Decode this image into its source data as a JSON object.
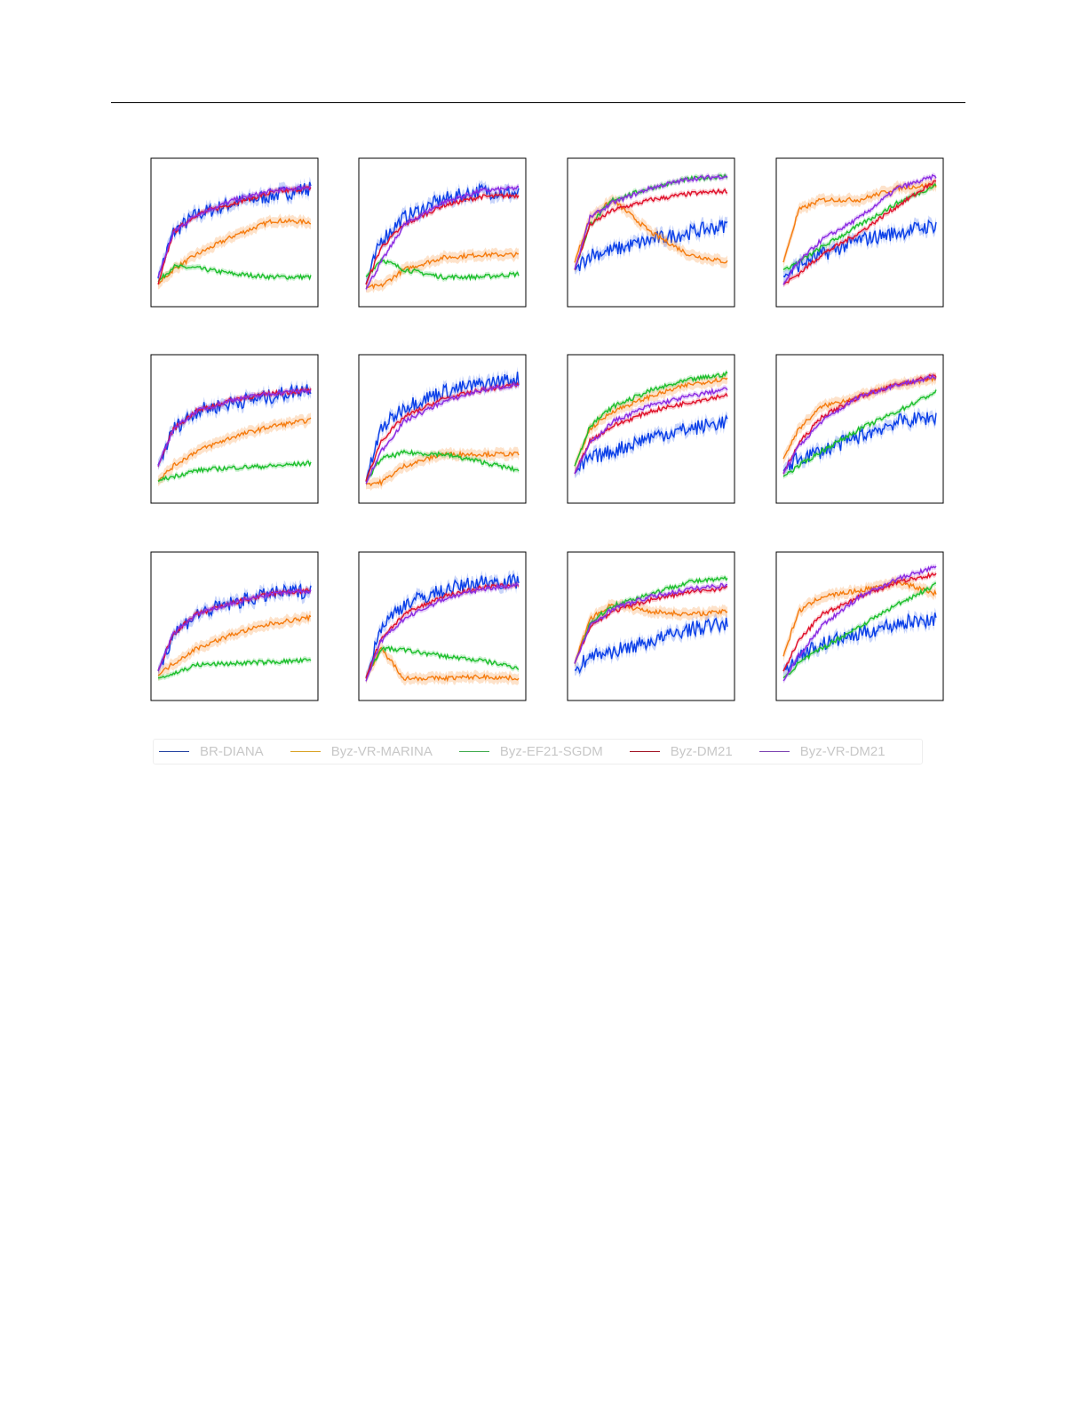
{
  "chart_data": [
    {
      "type": "line",
      "panel": "r1c1",
      "x": [
        0,
        0.1,
        0.25,
        0.5,
        0.75,
        1
      ],
      "series": [
        {
          "key": "BR-DIANA",
          "values": [
            0.2,
            0.5,
            0.62,
            0.7,
            0.75,
            0.8
          ]
        },
        {
          "key": "Byz-VR-MARINA",
          "values": [
            0.15,
            0.25,
            0.35,
            0.48,
            0.58,
            0.57
          ]
        },
        {
          "key": "Byz-EF21-SGDM",
          "values": [
            0.17,
            0.27,
            0.26,
            0.22,
            0.2,
            0.2
          ]
        },
        {
          "key": "Byz-DM21",
          "values": [
            0.15,
            0.5,
            0.62,
            0.7,
            0.77,
            0.8
          ]
        },
        {
          "key": "Byz-VR-DM21",
          "values": [
            0.2,
            0.5,
            0.62,
            0.72,
            0.78,
            0.81
          ]
        }
      ]
    },
    {
      "type": "line",
      "panel": "r1c2",
      "x": [
        0,
        0.1,
        0.25,
        0.5,
        0.75,
        1
      ],
      "series": [
        {
          "key": "BR-DIANA",
          "values": [
            0.15,
            0.45,
            0.6,
            0.72,
            0.78,
            0.76
          ]
        },
        {
          "key": "Byz-VR-MARINA",
          "values": [
            0.13,
            0.14,
            0.25,
            0.33,
            0.35,
            0.35
          ]
        },
        {
          "key": "Byz-EF21-SGDM",
          "values": [
            0.2,
            0.32,
            0.25,
            0.2,
            0.2,
            0.22
          ]
        },
        {
          "key": "Byz-DM21",
          "values": [
            0.15,
            0.4,
            0.55,
            0.68,
            0.74,
            0.75
          ]
        },
        {
          "key": "Byz-VR-DM21",
          "values": [
            0.12,
            0.3,
            0.55,
            0.7,
            0.78,
            0.8
          ]
        }
      ]
    },
    {
      "type": "line",
      "panel": "r1c3",
      "x": [
        0,
        0.1,
        0.25,
        0.5,
        0.75,
        1
      ],
      "series": [
        {
          "key": "BR-DIANA",
          "values": [
            0.25,
            0.35,
            0.38,
            0.45,
            0.5,
            0.55
          ]
        },
        {
          "key": "Byz-VR-MARINA",
          "values": [
            0.3,
            0.6,
            0.72,
            0.5,
            0.35,
            0.3
          ]
        },
        {
          "key": "Byz-EF21-SGDM",
          "values": [
            0.25,
            0.55,
            0.72,
            0.8,
            0.86,
            0.88
          ]
        },
        {
          "key": "Byz-DM21",
          "values": [
            0.25,
            0.55,
            0.65,
            0.72,
            0.76,
            0.78
          ]
        },
        {
          "key": "Byz-VR-DM21",
          "values": [
            0.25,
            0.6,
            0.7,
            0.8,
            0.86,
            0.88
          ]
        }
      ]
    },
    {
      "type": "line",
      "panel": "r1c4",
      "x": [
        0,
        0.1,
        0.25,
        0.5,
        0.75,
        1
      ],
      "series": [
        {
          "key": "BR-DIANA",
          "values": [
            0.2,
            0.28,
            0.35,
            0.45,
            0.5,
            0.55
          ]
        },
        {
          "key": "Byz-VR-MARINA",
          "values": [
            0.3,
            0.65,
            0.72,
            0.72,
            0.8,
            0.82
          ]
        },
        {
          "key": "Byz-EF21-SGDM",
          "values": [
            0.25,
            0.3,
            0.4,
            0.55,
            0.7,
            0.82
          ]
        },
        {
          "key": "Byz-DM21",
          "values": [
            0.15,
            0.22,
            0.35,
            0.5,
            0.68,
            0.85
          ]
        },
        {
          "key": "Byz-VR-DM21",
          "values": [
            0.15,
            0.3,
            0.45,
            0.6,
            0.8,
            0.88
          ]
        }
      ]
    },
    {
      "type": "line",
      "panel": "r2c1",
      "x": [
        0,
        0.1,
        0.25,
        0.5,
        0.75,
        1
      ],
      "series": [
        {
          "key": "BR-DIANA",
          "values": [
            0.25,
            0.5,
            0.62,
            0.68,
            0.72,
            0.78
          ]
        },
        {
          "key": "Byz-VR-MARINA",
          "values": [
            0.15,
            0.25,
            0.35,
            0.45,
            0.52,
            0.56
          ]
        },
        {
          "key": "Byz-EF21-SGDM",
          "values": [
            0.15,
            0.18,
            0.22,
            0.24,
            0.25,
            0.27
          ]
        },
        {
          "key": "Byz-DM21",
          "values": [
            0.25,
            0.5,
            0.62,
            0.7,
            0.74,
            0.76
          ]
        },
        {
          "key": "Byz-VR-DM21",
          "values": [
            0.25,
            0.5,
            0.62,
            0.7,
            0.74,
            0.76
          ]
        }
      ]
    },
    {
      "type": "line",
      "panel": "r2c2",
      "x": [
        0,
        0.1,
        0.25,
        0.5,
        0.75,
        1
      ],
      "series": [
        {
          "key": "BR-DIANA",
          "values": [
            0.15,
            0.5,
            0.65,
            0.75,
            0.8,
            0.84
          ]
        },
        {
          "key": "Byz-VR-MARINA",
          "values": [
            0.13,
            0.14,
            0.25,
            0.33,
            0.33,
            0.33
          ]
        },
        {
          "key": "Byz-EF21-SGDM",
          "values": [
            0.15,
            0.3,
            0.34,
            0.33,
            0.28,
            0.22
          ]
        },
        {
          "key": "Byz-DM21",
          "values": [
            0.15,
            0.42,
            0.58,
            0.7,
            0.76,
            0.8
          ]
        },
        {
          "key": "Byz-VR-DM21",
          "values": [
            0.13,
            0.35,
            0.55,
            0.68,
            0.76,
            0.8
          ]
        }
      ]
    },
    {
      "type": "line",
      "panel": "r2c3",
      "x": [
        0,
        0.1,
        0.25,
        0.5,
        0.75,
        1
      ],
      "series": [
        {
          "key": "BR-DIANA",
          "values": [
            0.2,
            0.3,
            0.35,
            0.45,
            0.5,
            0.55
          ]
        },
        {
          "key": "Byz-VR-MARINA",
          "values": [
            0.25,
            0.5,
            0.62,
            0.72,
            0.8,
            0.84
          ]
        },
        {
          "key": "Byz-EF21-SGDM",
          "values": [
            0.25,
            0.52,
            0.65,
            0.76,
            0.83,
            0.87
          ]
        },
        {
          "key": "Byz-DM21",
          "values": [
            0.2,
            0.42,
            0.52,
            0.62,
            0.68,
            0.73
          ]
        },
        {
          "key": "Byz-VR-DM21",
          "values": [
            0.2,
            0.4,
            0.55,
            0.66,
            0.72,
            0.77
          ]
        }
      ]
    },
    {
      "type": "line",
      "panel": "r2c4",
      "x": [
        0,
        0.1,
        0.25,
        0.5,
        0.75,
        1
      ],
      "series": [
        {
          "key": "BR-DIANA",
          "values": [
            0.22,
            0.3,
            0.35,
            0.45,
            0.55,
            0.58
          ]
        },
        {
          "key": "Byz-VR-MARINA",
          "values": [
            0.3,
            0.5,
            0.65,
            0.72,
            0.8,
            0.84
          ]
        },
        {
          "key": "Byz-EF21-SGDM",
          "values": [
            0.18,
            0.25,
            0.35,
            0.5,
            0.62,
            0.75
          ]
        },
        {
          "key": "Byz-DM21",
          "values": [
            0.2,
            0.4,
            0.58,
            0.72,
            0.8,
            0.86
          ]
        },
        {
          "key": "Byz-VR-DM21",
          "values": [
            0.2,
            0.38,
            0.55,
            0.72,
            0.8,
            0.85
          ]
        }
      ]
    },
    {
      "type": "line",
      "panel": "r3c1",
      "x": [
        0,
        0.1,
        0.25,
        0.5,
        0.75,
        1
      ],
      "series": [
        {
          "key": "BR-DIANA",
          "values": [
            0.2,
            0.45,
            0.58,
            0.66,
            0.72,
            0.74
          ]
        },
        {
          "key": "Byz-VR-MARINA",
          "values": [
            0.17,
            0.25,
            0.35,
            0.45,
            0.52,
            0.56
          ]
        },
        {
          "key": "Byz-EF21-SGDM",
          "values": [
            0.15,
            0.18,
            0.24,
            0.25,
            0.26,
            0.27
          ]
        },
        {
          "key": "Byz-DM21",
          "values": [
            0.2,
            0.45,
            0.58,
            0.66,
            0.72,
            0.74
          ]
        },
        {
          "key": "Byz-VR-DM21",
          "values": [
            0.2,
            0.45,
            0.58,
            0.66,
            0.72,
            0.74
          ]
        }
      ]
    },
    {
      "type": "line",
      "panel": "r3c2",
      "x": [
        0,
        0.1,
        0.25,
        0.5,
        0.75,
        1
      ],
      "series": [
        {
          "key": "BR-DIANA",
          "values": [
            0.15,
            0.5,
            0.65,
            0.74,
            0.8,
            0.8
          ]
        },
        {
          "key": "Byz-VR-MARINA",
          "values": [
            0.15,
            0.35,
            0.15,
            0.15,
            0.16,
            0.15
          ]
        },
        {
          "key": "Byz-EF21-SGDM",
          "values": [
            0.15,
            0.35,
            0.34,
            0.3,
            0.27,
            0.22
          ]
        },
        {
          "key": "Byz-DM21",
          "values": [
            0.15,
            0.42,
            0.58,
            0.7,
            0.76,
            0.78
          ]
        },
        {
          "key": "Byz-VR-DM21",
          "values": [
            0.13,
            0.4,
            0.55,
            0.68,
            0.75,
            0.78
          ]
        }
      ]
    },
    {
      "type": "line",
      "panel": "r3c3",
      "x": [
        0,
        0.1,
        0.25,
        0.5,
        0.75,
        1
      ],
      "series": [
        {
          "key": "BR-DIANA",
          "values": [
            0.2,
            0.3,
            0.33,
            0.4,
            0.48,
            0.52
          ]
        },
        {
          "key": "Byz-VR-MARINA",
          "values": [
            0.25,
            0.55,
            0.65,
            0.6,
            0.58,
            0.6
          ]
        },
        {
          "key": "Byz-EF21-SGDM",
          "values": [
            0.25,
            0.52,
            0.64,
            0.72,
            0.8,
            0.82
          ]
        },
        {
          "key": "Byz-DM21",
          "values": [
            0.25,
            0.5,
            0.6,
            0.68,
            0.73,
            0.76
          ]
        },
        {
          "key": "Byz-VR-DM21",
          "values": [
            0.25,
            0.5,
            0.62,
            0.7,
            0.75,
            0.78
          ]
        }
      ]
    },
    {
      "type": "line",
      "panel": "r3c4",
      "x": [
        0,
        0.1,
        0.25,
        0.5,
        0.75,
        1
      ],
      "series": [
        {
          "key": "BR-DIANA",
          "values": [
            0.2,
            0.3,
            0.38,
            0.45,
            0.52,
            0.55
          ]
        },
        {
          "key": "Byz-VR-MARINA",
          "values": [
            0.3,
            0.6,
            0.7,
            0.74,
            0.8,
            0.72
          ]
        },
        {
          "key": "Byz-EF21-SGDM",
          "values": [
            0.15,
            0.25,
            0.35,
            0.5,
            0.65,
            0.78
          ]
        },
        {
          "key": "Byz-DM21",
          "values": [
            0.2,
            0.4,
            0.58,
            0.7,
            0.8,
            0.85
          ]
        },
        {
          "key": "Byz-VR-DM21",
          "values": [
            0.13,
            0.3,
            0.5,
            0.7,
            0.82,
            0.9
          ]
        }
      ]
    }
  ],
  "legend": {
    "placement": "bottom",
    "items": [
      {
        "key": "BR-DIANA",
        "label": "BR-DIANA",
        "color": "#0a3fe8",
        "legend_color": "#1f3f9f"
      },
      {
        "key": "Byz-VR-MARINA",
        "label": "Byz-VR-MARINA",
        "color": "#f57c0f",
        "legend_color": "#d9a020"
      },
      {
        "key": "Byz-EF21-SGDM",
        "label": "Byz-EF21-SGDM",
        "color": "#1cbf2c",
        "legend_color": "#3daa4a"
      },
      {
        "key": "Byz-DM21",
        "label": "Byz-DM21",
        "color": "#e0102a",
        "legend_color": "#a01020"
      },
      {
        "key": "Byz-VR-DM21",
        "label": "Byz-VR-DM21",
        "color": "#8b2be2",
        "legend_color": "#7a3fb0"
      }
    ]
  }
}
